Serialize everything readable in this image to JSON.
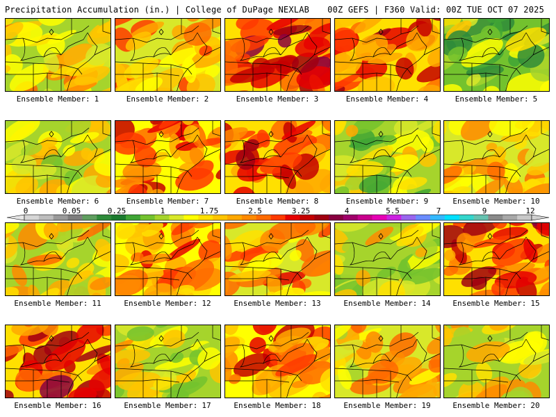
{
  "header": {
    "title": "Precipitation Accumulation (in.) | College of DuPage NEXLAB",
    "run_info": "00Z GEFS | F360 Valid: 00Z TUE OCT 07 2025"
  },
  "caption_label": "Ensemble Member:",
  "members": [
    {
      "number": "1",
      "intensity": 0.4
    },
    {
      "number": "2",
      "intensity": 0.55
    },
    {
      "number": "3",
      "intensity": 0.85
    },
    {
      "number": "4",
      "intensity": 0.75
    },
    {
      "number": "5",
      "intensity": 0.15
    },
    {
      "number": "6",
      "intensity": 0.3
    },
    {
      "number": "7",
      "intensity": 0.7
    },
    {
      "number": "8",
      "intensity": 0.75
    },
    {
      "number": "9",
      "intensity": 0.25
    },
    {
      "number": "10",
      "intensity": 0.5
    },
    {
      "number": "11",
      "intensity": 0.4
    },
    {
      "number": "12",
      "intensity": 0.6
    },
    {
      "number": "13",
      "intensity": 0.55
    },
    {
      "number": "14",
      "intensity": 0.3
    },
    {
      "number": "15",
      "intensity": 0.85
    },
    {
      "number": "16",
      "intensity": 0.8
    },
    {
      "number": "17",
      "intensity": 0.3
    },
    {
      "number": "18",
      "intensity": 0.65
    },
    {
      "number": "19",
      "intensity": 0.45
    },
    {
      "number": "20",
      "intensity": 0.35
    }
  ],
  "legend": {
    "tick_labels": [
      "0",
      "0.05",
      "0.25",
      "1",
      "1.75",
      "2.5",
      "3.25",
      "4",
      "5.5",
      "7",
      "9",
      "12"
    ],
    "colors": [
      "#d6d6d6",
      "#bdbdbd",
      "#9a9a9a",
      "#7d7d7d",
      "#5f9e5f",
      "#2e8b3a",
      "#1b7a2e",
      "#3fa535",
      "#73c22e",
      "#a6d42c",
      "#d8e82a",
      "#ffff00",
      "#ffe000",
      "#ffc400",
      "#ffa800",
      "#ff8a00",
      "#ff6a00",
      "#ff3a00",
      "#e60000",
      "#c40000",
      "#a00010",
      "#880040",
      "#a0006a",
      "#c8008c",
      "#e600b4",
      "#cc22e0",
      "#9966ee",
      "#6a8cff",
      "#33b8ff",
      "#00e0ff",
      "#33d6cc",
      "#66c2b0",
      "#8a8a8a",
      "#a8a8a8",
      "#c8c8c8"
    ]
  }
}
